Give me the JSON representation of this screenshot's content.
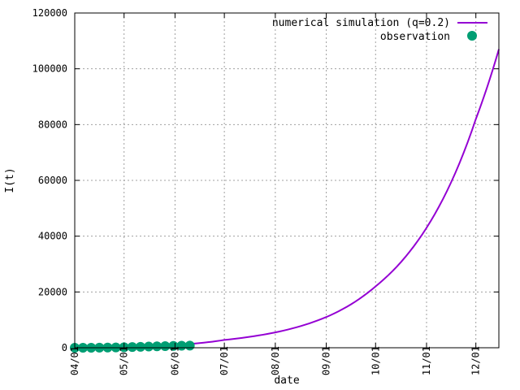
{
  "chart_data": {
    "type": "line",
    "title": "",
    "xlabel": "date",
    "ylabel": "I(t)",
    "x_ticks": [
      "04/01",
      "05/01",
      "06/01",
      "07/01",
      "08/01",
      "09/01",
      "10/01",
      "11/01",
      "12/01"
    ],
    "x_tick_dates": [
      "2020-04-01",
      "2020-05-01",
      "2020-06-01",
      "2020-07-01",
      "2020-08-01",
      "2020-09-01",
      "2020-10-01",
      "2020-11-01",
      "2020-12-01"
    ],
    "xlim": [
      "2020-04-01",
      "2020-12-15"
    ],
    "y_ticks": [
      0,
      20000,
      40000,
      60000,
      80000,
      100000,
      120000
    ],
    "ylim": [
      0,
      120000
    ],
    "grid": true,
    "legend_position": "top-right",
    "series": [
      {
        "name": "numerical simulation (q=0.2)",
        "kind": "line",
        "color": "#9400d3",
        "x": [
          "2020-04-01",
          "2020-05-01",
          "2020-06-01",
          "2020-07-01",
          "2020-08-01",
          "2020-09-01",
          "2020-10-01",
          "2020-11-01",
          "2020-12-01",
          "2020-12-15"
        ],
        "y": [
          300,
          500,
          1000,
          2800,
          5500,
          11000,
          22000,
          43000,
          82000,
          107000
        ]
      },
      {
        "name": "observation",
        "kind": "scatter",
        "color": "#009e73",
        "x": [
          "2020-04-01",
          "2020-04-06",
          "2020-04-11",
          "2020-04-16",
          "2020-04-21",
          "2020-04-26",
          "2020-05-01",
          "2020-05-06",
          "2020-05-11",
          "2020-05-16",
          "2020-05-21",
          "2020-05-26",
          "2020-05-31",
          "2020-06-05",
          "2020-06-10"
        ],
        "y": [
          0,
          0,
          0,
          50,
          80,
          120,
          180,
          250,
          330,
          420,
          500,
          580,
          650,
          720,
          780
        ]
      }
    ]
  }
}
